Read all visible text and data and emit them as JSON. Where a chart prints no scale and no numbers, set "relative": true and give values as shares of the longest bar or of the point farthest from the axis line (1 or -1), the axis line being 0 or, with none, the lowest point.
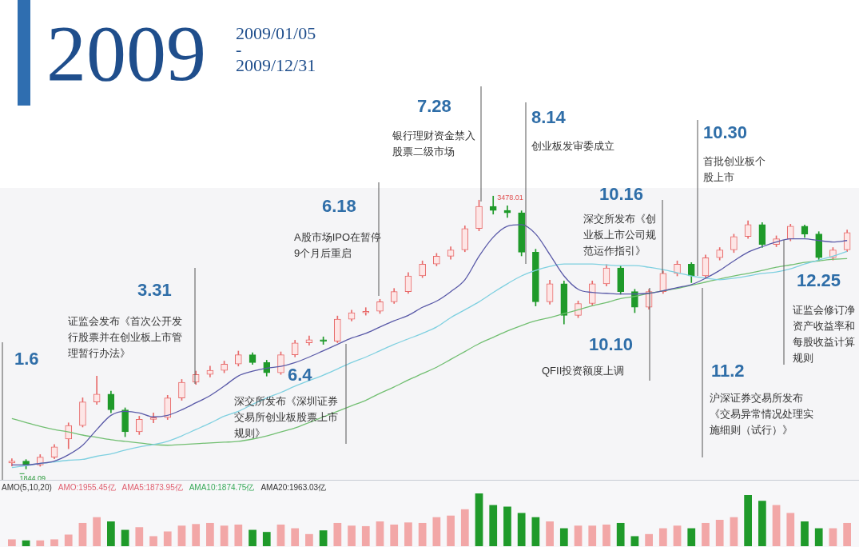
{
  "chart_data": [
    {
      "type": "candlestick",
      "title": "2009",
      "subtitle": "2009/01/05\n-\n2009/12/31",
      "categories": [
        null,
        null,
        null,
        null,
        null,
        null,
        null,
        null,
        null,
        null,
        null,
        null,
        null,
        null,
        null,
        null,
        null,
        null,
        null,
        null,
        null,
        null,
        null,
        null,
        null,
        null,
        null,
        null,
        null,
        null,
        null,
        null,
        null,
        null,
        null,
        null,
        null,
        null,
        null,
        null,
        null,
        null,
        null,
        null,
        null,
        null,
        null,
        null,
        null,
        null,
        null,
        null,
        null,
        null,
        null,
        null,
        null,
        null,
        null,
        null
      ],
      "ohlc": [
        [
          1880,
          1905,
          1862,
          1891
        ],
        [
          1891,
          1900,
          1844.09,
          1868
        ],
        [
          1868,
          1930,
          1860,
          1915
        ],
        [
          1915,
          1990,
          1905,
          1976
        ],
        [
          2023,
          2120,
          1965,
          2104
        ],
        [
          2104,
          2270,
          2095,
          2245
        ],
        [
          2245,
          2400,
          2230,
          2292
        ],
        [
          2292,
          2310,
          2180,
          2198
        ],
        [
          2198,
          2210,
          2037,
          2066
        ],
        [
          2066,
          2160,
          2050,
          2141
        ],
        [
          2141,
          2180,
          2120,
          2151
        ],
        [
          2151,
          2285,
          2140,
          2269
        ],
        [
          2269,
          2380,
          2255,
          2363
        ],
        [
          2363,
          2430,
          2350,
          2410
        ],
        [
          2410,
          2460,
          2395,
          2434
        ],
        [
          2434,
          2490,
          2420,
          2472
        ],
        [
          2472,
          2550,
          2460,
          2528
        ],
        [
          2528,
          2540,
          2470,
          2481
        ],
        [
          2481,
          2495,
          2400,
          2420
        ],
        [
          2420,
          2545,
          2410,
          2528
        ],
        [
          2528,
          2615,
          2515,
          2599
        ],
        [
          2599,
          2640,
          2585,
          2618
        ],
        [
          2618,
          2635,
          2590,
          2609
        ],
        [
          2609,
          2760,
          2600,
          2741
        ],
        [
          2741,
          2795,
          2730,
          2779
        ],
        [
          2779,
          2810,
          2765,
          2788
        ],
        [
          2788,
          2860,
          2775,
          2845
        ],
        [
          2845,
          2925,
          2835,
          2906
        ],
        [
          2906,
          3020,
          2895,
          3000
        ],
        [
          3000,
          3090,
          2990,
          3071
        ],
        [
          3071,
          3135,
          3060,
          3118
        ],
        [
          3118,
          3175,
          3100,
          3156
        ],
        [
          3156,
          3300,
          3145,
          3284
        ],
        [
          3284,
          3454,
          3270,
          3416
        ],
        [
          3416,
          3478.01,
          3370,
          3392
        ],
        [
          3392,
          3420,
          3350,
          3378
        ],
        [
          3378,
          3390,
          3120,
          3142
        ],
        [
          3142,
          3160,
          2820,
          2845
        ],
        [
          2845,
          2975,
          2830,
          2953
        ],
        [
          2953,
          2970,
          2712,
          2764
        ],
        [
          2764,
          2850,
          2750,
          2835
        ],
        [
          2835,
          2970,
          2825,
          2953
        ],
        [
          2953,
          3068,
          2940,
          3048
        ],
        [
          3048,
          3060,
          2890,
          2906
        ],
        [
          2906,
          2920,
          2780,
          2812
        ],
        [
          2812,
          2920,
          2800,
          2906
        ],
        [
          2906,
          3030,
          2895,
          3015
        ],
        [
          3015,
          3090,
          3000,
          3071
        ],
        [
          3071,
          3080,
          2960,
          3000
        ],
        [
          3000,
          3125,
          2990,
          3109
        ],
        [
          3109,
          3170,
          3095,
          3156
        ],
        [
          3156,
          3250,
          3140,
          3236
        ],
        [
          3236,
          3330,
          3225,
          3307
        ],
        [
          3307,
          3320,
          3170,
          3189
        ],
        [
          3189,
          3240,
          3175,
          3222
        ],
        [
          3222,
          3310,
          3210,
          3298
        ],
        [
          3298,
          3305,
          3230,
          3251
        ],
        [
          3251,
          3265,
          3090,
          3109
        ],
        [
          3109,
          3170,
          3095,
          3156
        ],
        [
          3156,
          3275,
          3145,
          3260
        ]
      ],
      "series": [
        {
          "type": "line",
          "color": "#5a5aa8",
          "values": [
            1868,
            1868,
            1877,
            1891,
            1929,
            1986,
            2080,
            2165,
            2189,
            2179,
            2156,
            2165,
            2198,
            2240,
            2283,
            2340,
            2401,
            2429,
            2448,
            2458,
            2481,
            2514,
            2552,
            2590,
            2628,
            2656,
            2694,
            2731,
            2764,
            2812,
            2849,
            2906,
            2977,
            3118,
            3232,
            3298,
            3307,
            3251,
            3128,
            3000,
            2920,
            2901,
            2896,
            2892,
            2892,
            2896,
            2911,
            2930,
            2948,
            2986,
            3033,
            3090,
            3142,
            3175,
            3203,
            3222,
            3222,
            3212,
            3203,
            3212
          ]
        },
        {
          "type": "line",
          "color": "#7fd0e0",
          "values": [
            1853,
            1863,
            1877,
            1886,
            1896,
            1901,
            1920,
            1934,
            1957,
            1976,
            1990,
            2009,
            2042,
            2080,
            2118,
            2160,
            2189,
            2231,
            2269,
            2302,
            2340,
            2373,
            2406,
            2443,
            2481,
            2514,
            2552,
            2590,
            2623,
            2656,
            2694,
            2750,
            2797,
            2845,
            2901,
            2953,
            3000,
            3033,
            3057,
            3071,
            3071,
            3071,
            3066,
            3062,
            3062,
            3052,
            3038,
            3019,
            3000,
            2986,
            2977,
            2986,
            3000,
            3015,
            3024,
            3043,
            3071,
            3095,
            3118,
            3147
          ]
        },
        {
          "type": "line",
          "color": "#72bf72",
          "values": [
            2146,
            2122,
            2099,
            2080,
            2066,
            2047,
            2033,
            2019,
            2009,
            2000,
            1990,
            1986,
            1990,
            1995,
            2000,
            2004,
            2009,
            2023,
            2042,
            2066,
            2089,
            2122,
            2156,
            2189,
            2222,
            2255,
            2297,
            2335,
            2377,
            2415,
            2453,
            2500,
            2547,
            2594,
            2632,
            2670,
            2703,
            2731,
            2750,
            2774,
            2797,
            2821,
            2840,
            2864,
            2877,
            2896,
            2911,
            2925,
            2944,
            2963,
            2982,
            3000,
            3015,
            3033,
            3052,
            3066,
            3081,
            3090,
            3100,
            3104
          ]
        }
      ],
      "annotations": [
        "1.6",
        "3.31",
        "证监会发布《首次公开发行股票并在创业板上市管理暂行办法》",
        "6.4",
        "深交所发布《深圳证券交易所创业板股票上市规则》",
        "6.18",
        "A股市场IPO在暂停9个月后重启",
        "7.28",
        "银行理财资金禁入股票二级市场",
        "8.14",
        "创业板发审委成立",
        "10.10",
        "QFII投资额度上调",
        "10.16",
        "深交所发布《创业板上市公司规范运作指引》",
        "10.30",
        "首批创业板个股上市",
        "11.2",
        "沪深证券交易所发布《交易异常情况处理实施细则（试行）》",
        "12.25",
        "证监会修订净资产收益率和每股收益计算规则",
        "3478.01",
        "1844.09"
      ]
    },
    {
      "type": "bar",
      "relative": true,
      "categories": [
        null,
        null,
        null,
        null,
        null,
        null,
        null,
        null,
        null,
        null,
        null,
        null,
        null,
        null,
        null,
        null,
        null,
        null,
        null,
        null,
        null,
        null,
        null,
        null,
        null,
        null,
        null,
        null,
        null,
        null,
        null,
        null,
        null,
        null,
        null,
        null,
        null,
        null,
        null,
        null,
        null,
        null,
        null,
        null,
        null,
        null,
        null,
        null,
        null,
        null,
        null,
        null,
        null,
        null,
        null,
        null,
        null,
        null,
        null,
        null
      ],
      "values": [
        0.13,
        0.11,
        0.11,
        0.13,
        0.22,
        0.44,
        0.55,
        0.47,
        0.31,
        0.36,
        0.19,
        0.28,
        0.39,
        0.42,
        0.44,
        0.39,
        0.41,
        0.31,
        0.27,
        0.41,
        0.34,
        0.23,
        0.3,
        0.44,
        0.39,
        0.38,
        0.47,
        0.41,
        0.45,
        0.44,
        0.55,
        0.58,
        0.7,
        1,
        0.78,
        0.75,
        0.63,
        0.55,
        0.47,
        0.34,
        0.39,
        0.39,
        0.41,
        0.44,
        0.19,
        0.23,
        0.34,
        0.39,
        0.34,
        0.44,
        0.5,
        0.55,
        0.97,
        0.86,
        0.78,
        0.63,
        0.47,
        0.34,
        0.34,
        0.44
      ],
      "colors": [
        "#f2a7a7",
        "#1f9a2a",
        "#f2a7a7",
        "#f2a7a7",
        "#f2a7a7",
        "#f2a7a7",
        "#f2a7a7",
        "#1f9a2a",
        "#1f9a2a",
        "#f2a7a7",
        "#f2a7a7",
        "#f2a7a7",
        "#f2a7a7",
        "#f2a7a7",
        "#f2a7a7",
        "#f2a7a7",
        "#f2a7a7",
        "#1f9a2a",
        "#1f9a2a",
        "#f2a7a7",
        "#f2a7a7",
        "#f2a7a7",
        "#1f9a2a",
        "#f2a7a7",
        "#f2a7a7",
        "#f2a7a7",
        "#f2a7a7",
        "#f2a7a7",
        "#f2a7a7",
        "#f2a7a7",
        "#f2a7a7",
        "#f2a7a7",
        "#f2a7a7",
        "#1f9a2a",
        "#1f9a2a",
        "#1f9a2a",
        "#1f9a2a",
        "#1f9a2a",
        "#f2a7a7",
        "#1f9a2a",
        "#f2a7a7",
        "#f2a7a7",
        "#f2a7a7",
        "#1f9a2a",
        "#1f9a2a",
        "#f2a7a7",
        "#f2a7a7",
        "#f2a7a7",
        "#1f9a2a",
        "#f2a7a7",
        "#f2a7a7",
        "#f2a7a7",
        "#1f9a2a",
        "#1f9a2a",
        "#f2a7a7",
        "#f2a7a7",
        "#1f9a2a",
        "#1f9a2a",
        "#f2a7a7",
        "#f2a7a7"
      ],
      "annotations": [
        "AMO(5,10,20)",
        "AMO:1955.45亿",
        "AMA5:1873.95亿",
        "AMA10:1874.75亿",
        "AMA20:1963.03亿"
      ]
    }
  ]
}
